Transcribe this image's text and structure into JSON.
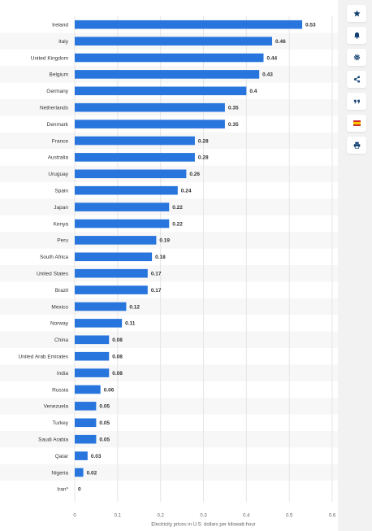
{
  "chart_data": {
    "type": "bar",
    "orientation": "horizontal",
    "categories": [
      "Ireland",
      "Italy",
      "United Kingdom",
      "Belgium",
      "Germany",
      "Netherlands",
      "Denmark",
      "France",
      "Australia",
      "Uruguay",
      "Spain",
      "Japan",
      "Kenya",
      "Peru",
      "South Africa",
      "United States",
      "Brazil",
      "Mexico",
      "Norway",
      "China",
      "United Arab Emirates",
      "India",
      "Russia",
      "Venezuela",
      "Turkey",
      "Saudi Arabia",
      "Qatar",
      "Nigeria",
      "Iran*"
    ],
    "values": [
      0.53,
      0.46,
      0.44,
      0.43,
      0.4,
      0.35,
      0.35,
      0.28,
      0.28,
      0.26,
      0.24,
      0.22,
      0.22,
      0.19,
      0.18,
      0.17,
      0.17,
      0.12,
      0.11,
      0.08,
      0.08,
      0.08,
      0.06,
      0.05,
      0.05,
      0.05,
      0.03,
      0.02,
      0
    ],
    "value_labels": [
      "0.53",
      "0.46",
      "0.44",
      "0.43",
      "0.4",
      "0.35",
      "0.35",
      "0.28",
      "0.28",
      "0.26",
      "0.24",
      "0.22",
      "0.22",
      "0.19",
      "0.18",
      "0.17",
      "0.17",
      "0.12",
      "0.11",
      "0.08",
      "0.08",
      "0.08",
      "0.06",
      "0.05",
      "0.05",
      "0.05",
      "0.03",
      "0.02",
      "0"
    ],
    "xticks": [
      "0",
      "0.1",
      "0.2",
      "0.3",
      "0.4",
      "0.5",
      "0.6"
    ],
    "xlim": [
      0,
      0.6
    ],
    "xlabel": "Electricity prices in U.S. dollars per kilowatt-hour",
    "title": "",
    "grid": "vertical",
    "legend": "none",
    "bar_color": "#2876dd"
  },
  "toolbar": {
    "icons": [
      "star-icon",
      "bell-icon",
      "gear-icon",
      "share-icon",
      "quote-icon",
      "flag-icon",
      "print-icon"
    ],
    "accent": "#0f3e6e",
    "flag_colors": [
      "#c60b1e",
      "#ffc400"
    ]
  }
}
